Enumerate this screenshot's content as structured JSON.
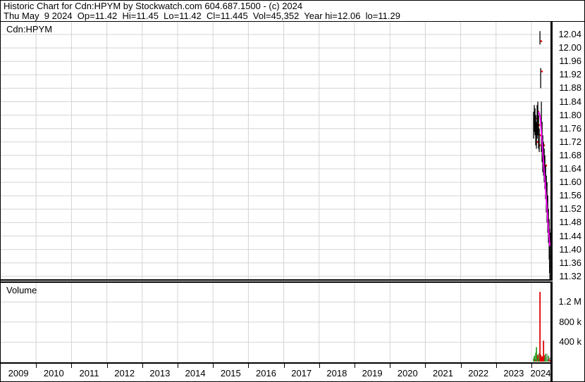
{
  "header": {
    "line1": "Historic Chart for Cdn:HPYM by Stockwatch.com 604.687.1500 - (c) 2024",
    "line2": "Thu May  9 2024  Op=11.42  Hi=11.45  Lo=11.42  Cl=11.445  Vol=45,352  Year hi=12.06  lo=11.29"
  },
  "price_panel": {
    "symbol": "Cdn:HPYM"
  },
  "volume_panel": {
    "label": "Volume"
  },
  "axes": {
    "price_ticks": [
      "12.04",
      "12.00",
      "11.96",
      "11.92",
      "11.88",
      "11.84",
      "11.80",
      "11.76",
      "11.72",
      "11.68",
      "11.64",
      "11.60",
      "11.56",
      "11.52",
      "11.48",
      "11.44",
      "11.40",
      "11.36",
      "11.32"
    ],
    "volume_ticks": [
      {
        "label": "1.2 M",
        "value": 1200000
      },
      {
        "label": "800 k",
        "value": 800000
      },
      {
        "label": "400 k",
        "value": 400000
      }
    ],
    "years": [
      "2009",
      "2010",
      "2011",
      "2012",
      "2013",
      "2014",
      "2015",
      "2016",
      "2017",
      "2018",
      "2019",
      "2020",
      "2021",
      "2022",
      "2023",
      "2024"
    ]
  },
  "chart_data": {
    "type": "ohlc-bar",
    "title": "Historic Chart for Cdn:HPYM",
    "x_unit": "decimal year (approx; trading visible only Nov 2023 - May 9 2024)",
    "x_range": [
      2009,
      2024.6
    ],
    "price_ylim": [
      11.3,
      12.06
    ],
    "price_grid_top": 12.04,
    "price_grid_step": 0.04,
    "quote": {
      "date": "Thu May 9 2024",
      "open": 11.42,
      "high": 11.45,
      "low": 11.42,
      "close": 11.445,
      "volume": 45352,
      "year_high": 12.06,
      "year_low": 11.29
    },
    "bars": [
      [
        2024.06,
        11.81,
        11.73,
        11.78
      ],
      [
        2024.08,
        11.83,
        11.75,
        11.76
      ],
      [
        2024.1,
        11.82,
        11.74,
        11.75
      ],
      [
        2024.12,
        11.8,
        11.71,
        11.79
      ],
      [
        2024.14,
        11.78,
        11.7,
        11.72
      ],
      [
        2024.16,
        11.83,
        11.73,
        11.81
      ],
      [
        2024.18,
        11.84,
        11.74,
        11.77
      ],
      [
        2024.2,
        11.8,
        11.7,
        11.71
      ],
      [
        2024.22,
        11.76,
        11.69,
        11.74
      ],
      [
        2024.24,
        12.05,
        12.01,
        12.02
      ],
      [
        2024.26,
        11.94,
        11.88,
        11.93
      ],
      [
        2024.28,
        11.84,
        11.69,
        11.7
      ],
      [
        2024.3,
        11.78,
        11.66,
        11.68
      ],
      [
        2024.32,
        11.74,
        11.63,
        11.71
      ],
      [
        2024.34,
        11.72,
        11.62,
        11.64
      ],
      [
        2024.36,
        11.7,
        11.6,
        11.61
      ],
      [
        2024.38,
        11.68,
        11.58,
        11.65
      ],
      [
        2024.4,
        11.65,
        11.55,
        11.56
      ],
      [
        2024.42,
        11.62,
        11.51,
        11.52
      ],
      [
        2024.44,
        11.6,
        11.48,
        11.49
      ],
      [
        2024.46,
        11.56,
        11.45,
        11.46
      ],
      [
        2024.48,
        11.52,
        11.42,
        11.43
      ],
      [
        2024.5,
        11.49,
        11.37,
        11.38
      ],
      [
        2024.51,
        11.46,
        11.33,
        11.35
      ],
      [
        2024.52,
        11.42,
        11.3,
        11.32
      ],
      [
        2024.53,
        11.45,
        11.42,
        11.445
      ]
    ],
    "ma_line": {
      "name": "moving-average",
      "points": [
        [
          2024.2,
          11.81
        ],
        [
          2024.24,
          11.8
        ],
        [
          2024.26,
          11.78
        ],
        [
          2024.28,
          11.75
        ],
        [
          2024.3,
          11.72
        ],
        [
          2024.32,
          11.69
        ],
        [
          2024.34,
          11.66
        ],
        [
          2024.36,
          11.63
        ],
        [
          2024.38,
          11.61
        ],
        [
          2024.4,
          11.58
        ],
        [
          2024.42,
          11.55
        ],
        [
          2024.44,
          11.52
        ],
        [
          2024.46,
          11.49
        ],
        [
          2024.48,
          11.46
        ],
        [
          2024.5,
          11.44
        ],
        [
          2024.52,
          11.41
        ]
      ]
    },
    "volume": {
      "ylim": [
        0,
        1600000
      ],
      "gridlines": [
        400000,
        800000,
        1200000
      ],
      "bars": [
        [
          2024.06,
          80000,
          "g"
        ],
        [
          2024.08,
          130000,
          "g"
        ],
        [
          2024.1,
          60000,
          "r"
        ],
        [
          2024.12,
          190000,
          "g"
        ],
        [
          2024.14,
          300000,
          "g"
        ],
        [
          2024.16,
          110000,
          "g"
        ],
        [
          2024.18,
          150000,
          "r"
        ],
        [
          2024.2,
          90000,
          "g"
        ],
        [
          2024.22,
          180000,
          "g"
        ],
        [
          2024.24,
          1400000,
          "r"
        ],
        [
          2024.26,
          150000,
          "r"
        ],
        [
          2024.28,
          90000,
          "r"
        ],
        [
          2024.3,
          120000,
          "r"
        ],
        [
          2024.32,
          100000,
          "r"
        ],
        [
          2024.34,
          430000,
          "r"
        ],
        [
          2024.36,
          140000,
          "r"
        ],
        [
          2024.38,
          90000,
          "g"
        ],
        [
          2024.4,
          170000,
          "g"
        ],
        [
          2024.42,
          110000,
          "g"
        ],
        [
          2024.44,
          170000,
          "x"
        ],
        [
          2024.46,
          60000,
          "g"
        ],
        [
          2024.48,
          130000,
          "g"
        ],
        [
          2024.5,
          80000,
          "r"
        ],
        [
          2024.52,
          100000,
          "x"
        ],
        [
          2024.53,
          45352,
          "r"
        ]
      ]
    },
    "colors": {
      "bar": "#000000",
      "close_tick": "#ff0000",
      "ma": "#ff00ff",
      "vol_up": "#2aa22a",
      "vol_down": "#e00000",
      "vol_neutral": "#a8a8a8",
      "grid": "#d4d4d4",
      "text": "#000000",
      "background": "#ffffff"
    },
    "legend_position": "none",
    "grid": true
  }
}
